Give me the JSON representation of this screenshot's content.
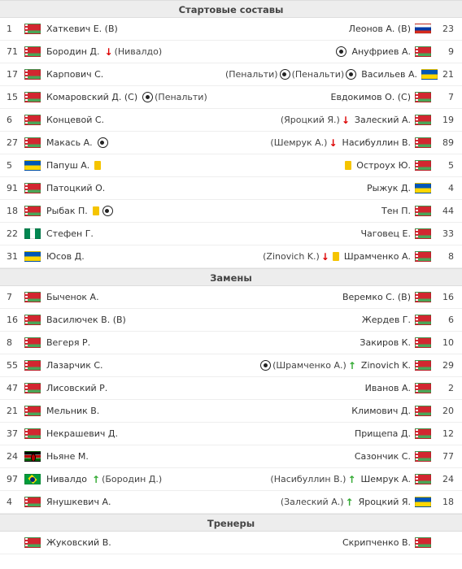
{
  "sections": {
    "lineups": "Стартовые составы",
    "subs": "Замены",
    "coaches": "Тренеры"
  },
  "lineups": [
    {
      "l": {
        "num": "1",
        "flag": "by",
        "name": "Хаткевич Е. (В)"
      },
      "r": {
        "num": "23",
        "flag": "ru",
        "name": "Леонов А. (В)"
      }
    },
    {
      "l": {
        "num": "71",
        "flag": "by",
        "name": "Бородин Д.",
        "events": [
          {
            "t": "down"
          },
          {
            "t": "text",
            "v": "(Нивалдо)"
          }
        ]
      },
      "r": {
        "num": "9",
        "flag": "by",
        "name": "Ануфриев А.",
        "events": [
          {
            "t": "ball"
          }
        ]
      }
    },
    {
      "l": {
        "num": "17",
        "flag": "by",
        "name": "Карпович С."
      },
      "r": {
        "num": "21",
        "flag": "ua",
        "name": "Васильев А.",
        "events": [
          {
            "t": "text",
            "v": "(Пенальти)"
          },
          {
            "t": "ball"
          },
          {
            "t": "text",
            "v": "(Пенальти)"
          },
          {
            "t": "ball"
          }
        ]
      }
    },
    {
      "l": {
        "num": "15",
        "flag": "by",
        "name": "Комаровский Д. (С)",
        "events": [
          {
            "t": "ball"
          },
          {
            "t": "text",
            "v": "(Пенальти)"
          }
        ]
      },
      "r": {
        "num": "7",
        "flag": "by",
        "name": "Евдокимов О. (С)"
      }
    },
    {
      "l": {
        "num": "6",
        "flag": "by",
        "name": "Концевой С."
      },
      "r": {
        "num": "19",
        "flag": "by",
        "name": "Залеский А.",
        "events": [
          {
            "t": "text",
            "v": "(Яроцкий Я.)"
          },
          {
            "t": "down"
          }
        ]
      }
    },
    {
      "l": {
        "num": "27",
        "flag": "by",
        "name": "Макась А.",
        "events": [
          {
            "t": "ball"
          }
        ]
      },
      "r": {
        "num": "89",
        "flag": "by",
        "name": "Насибуллин В.",
        "events": [
          {
            "t": "text",
            "v": "(Шемрук А.)"
          },
          {
            "t": "down"
          }
        ]
      }
    },
    {
      "l": {
        "num": "5",
        "flag": "ua",
        "name": "Папуш А.",
        "events": [
          {
            "t": "yellow"
          }
        ]
      },
      "r": {
        "num": "5",
        "flag": "by",
        "name": "Остроух Ю.",
        "events": [
          {
            "t": "yellow"
          }
        ]
      }
    },
    {
      "l": {
        "num": "91",
        "flag": "by",
        "name": "Патоцкий О."
      },
      "r": {
        "num": "4",
        "flag": "ua",
        "name": "Рыжук Д."
      }
    },
    {
      "l": {
        "num": "18",
        "flag": "by",
        "name": "Рыбак П.",
        "events": [
          {
            "t": "yellow"
          },
          {
            "t": "ball"
          }
        ]
      },
      "r": {
        "num": "44",
        "flag": "by",
        "name": "Тен П."
      }
    },
    {
      "l": {
        "num": "22",
        "flag": "ng",
        "name": "Стефен Г."
      },
      "r": {
        "num": "33",
        "flag": "by",
        "name": "Чаговец Е."
      }
    },
    {
      "l": {
        "num": "31",
        "flag": "ua",
        "name": "Юсов Д."
      },
      "r": {
        "num": "8",
        "flag": "by",
        "name": "Шрамченко А.",
        "events": [
          {
            "t": "text",
            "v": "(Zinovich K.)"
          },
          {
            "t": "down"
          },
          {
            "t": "yellow"
          }
        ]
      }
    }
  ],
  "subs": [
    {
      "l": {
        "num": "7",
        "flag": "by",
        "name": "Быченок А."
      },
      "r": {
        "num": "16",
        "flag": "by",
        "name": "Веремко С. (В)"
      }
    },
    {
      "l": {
        "num": "16",
        "flag": "by",
        "name": "Василючек В. (В)"
      },
      "r": {
        "num": "6",
        "flag": "by",
        "name": "Жердев Г."
      }
    },
    {
      "l": {
        "num": "8",
        "flag": "by",
        "name": "Вегеря Р."
      },
      "r": {
        "num": "10",
        "flag": "by",
        "name": "Закиров К."
      }
    },
    {
      "l": {
        "num": "55",
        "flag": "by",
        "name": "Лазарчик С."
      },
      "r": {
        "num": "29",
        "flag": "by",
        "name": "Zinovich K.",
        "events": [
          {
            "t": "ball"
          },
          {
            "t": "text",
            "v": "(Шрамченко А.)"
          },
          {
            "t": "up"
          }
        ]
      }
    },
    {
      "l": {
        "num": "47",
        "flag": "by",
        "name": "Лисовский Р."
      },
      "r": {
        "num": "2",
        "flag": "by",
        "name": "Иванов А."
      }
    },
    {
      "l": {
        "num": "21",
        "flag": "by",
        "name": "Мельник В."
      },
      "r": {
        "num": "20",
        "flag": "by",
        "name": "Климович Д."
      }
    },
    {
      "l": {
        "num": "37",
        "flag": "by",
        "name": "Некрашевич Д."
      },
      "r": {
        "num": "12",
        "flag": "by",
        "name": "Прищепа Д."
      }
    },
    {
      "l": {
        "num": "24",
        "flag": "ke",
        "name": "Ньяне М."
      },
      "r": {
        "num": "77",
        "flag": "by",
        "name": "Сазончик С."
      }
    },
    {
      "l": {
        "num": "97",
        "flag": "br",
        "name": "Нивалдо",
        "events": [
          {
            "t": "up"
          },
          {
            "t": "text",
            "v": "(Бородин Д.)"
          }
        ]
      },
      "r": {
        "num": "24",
        "flag": "by",
        "name": "Шемрук А.",
        "events": [
          {
            "t": "text",
            "v": "(Насибуллин В.)"
          },
          {
            "t": "up"
          }
        ]
      }
    },
    {
      "l": {
        "num": "4",
        "flag": "by",
        "name": "Янушкевич А."
      },
      "r": {
        "num": "18",
        "flag": "ua",
        "name": "Яроцкий Я.",
        "events": [
          {
            "t": "text",
            "v": "(Залеский А.)"
          },
          {
            "t": "up"
          }
        ]
      }
    }
  ],
  "coaches": [
    {
      "l": {
        "flag": "by",
        "name": "Жуковский В."
      },
      "r": {
        "flag": "by",
        "name": "Скрипченко В."
      }
    }
  ]
}
